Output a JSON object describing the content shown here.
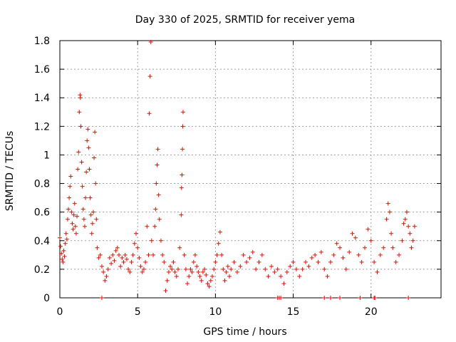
{
  "chart_data": {
    "type": "scatter",
    "title": "Day 330 of 2025, SRMTID for receiver yema",
    "xlabel": "GPS time / hours",
    "ylabel": "SRMTID / TECUs",
    "xlim": [
      0,
      24.5
    ],
    "ylim": [
      0,
      1.8
    ],
    "xticks": [
      0,
      5,
      10,
      15,
      20
    ],
    "xtick_labels": [
      "0",
      "5",
      "10",
      "15",
      "20"
    ],
    "yticks": [
      0,
      0.2,
      0.4,
      0.6,
      0.8,
      1,
      1.2,
      1.4,
      1.6,
      1.8
    ],
    "ytick_labels": [
      "0",
      "0.2",
      "0.4",
      "0.6",
      "0.8",
      "1",
      "1.2",
      "1.4",
      "1.6",
      "1.8"
    ],
    "grid": true,
    "marker": "+",
    "color": "#ff0000",
    "series": [
      {
        "name": "SRMTID",
        "points": [
          [
            0.0,
            0.42
          ],
          [
            0.05,
            0.36
          ],
          [
            0.1,
            0.31
          ],
          [
            0.15,
            0.27
          ],
          [
            0.2,
            0.25
          ],
          [
            0.25,
            0.33
          ],
          [
            0.3,
            0.29
          ],
          [
            0.35,
            0.38
          ],
          [
            0.4,
            0.45
          ],
          [
            0.45,
            0.41
          ],
          [
            0.5,
            0.55
          ],
          [
            0.55,
            0.62
          ],
          [
            0.6,
            0.7
          ],
          [
            0.65,
            0.78
          ],
          [
            0.7,
            0.85
          ],
          [
            0.75,
            0.6
          ],
          [
            0.8,
            0.52
          ],
          [
            0.85,
            0.48
          ],
          [
            0.9,
            0.58
          ],
          [
            0.95,
            0.66
          ],
          [
            1.0,
            0.5
          ],
          [
            1.05,
            0.45
          ],
          [
            1.1,
            0.57
          ],
          [
            1.15,
            0.9
          ],
          [
            1.2,
            1.02
          ],
          [
            1.25,
            1.3
          ],
          [
            1.3,
            1.42
          ],
          [
            1.32,
            1.4
          ],
          [
            1.35,
            1.2
          ],
          [
            1.4,
            0.95
          ],
          [
            1.45,
            0.78
          ],
          [
            1.5,
            0.62
          ],
          [
            1.55,
            0.55
          ],
          [
            1.6,
            0.5
          ],
          [
            1.65,
            0.7
          ],
          [
            1.7,
            0.88
          ],
          [
            1.75,
            1.1
          ],
          [
            1.8,
            1.18
          ],
          [
            1.85,
            1.05
          ],
          [
            1.9,
            0.9
          ],
          [
            1.95,
            0.7
          ],
          [
            2.0,
            0.58
          ],
          [
            2.05,
            0.45
          ],
          [
            2.1,
            0.52
          ],
          [
            2.15,
            0.6
          ],
          [
            2.2,
            0.98
          ],
          [
            2.25,
            1.16
          ],
          [
            2.3,
            0.8
          ],
          [
            2.35,
            0.55
          ],
          [
            2.4,
            0.35
          ],
          [
            2.5,
            0.28
          ],
          [
            2.6,
            0.3
          ],
          [
            2.7,
            0.22
          ],
          [
            2.8,
            0.18
          ],
          [
            2.9,
            0.12
          ],
          [
            3.0,
            0.15
          ],
          [
            3.1,
            0.2
          ],
          [
            3.2,
            0.28
          ],
          [
            3.3,
            0.24
          ],
          [
            3.4,
            0.3
          ],
          [
            3.5,
            0.26
          ],
          [
            3.6,
            0.33
          ],
          [
            3.7,
            0.35
          ],
          [
            3.8,
            0.3
          ],
          [
            3.9,
            0.22
          ],
          [
            4.0,
            0.28
          ],
          [
            4.1,
            0.25
          ],
          [
            4.2,
            0.3
          ],
          [
            4.3,
            0.27
          ],
          [
            4.4,
            0.2
          ],
          [
            4.5,
            0.18
          ],
          [
            4.6,
            0.25
          ],
          [
            4.7,
            0.3
          ],
          [
            4.8,
            0.38
          ],
          [
            4.9,
            0.45
          ],
          [
            5.0,
            0.35
          ],
          [
            5.1,
            0.28
          ],
          [
            5.2,
            0.22
          ],
          [
            5.3,
            0.18
          ],
          [
            5.4,
            0.2
          ],
          [
            5.5,
            0.25
          ],
          [
            5.6,
            0.5
          ],
          [
            5.7,
            0.3
          ],
          [
            5.75,
            1.29
          ],
          [
            5.8,
            1.55
          ],
          [
            5.85,
            1.79
          ],
          [
            5.9,
            0.4
          ],
          [
            6.0,
            0.3
          ],
          [
            6.1,
            0.5
          ],
          [
            6.15,
            0.62
          ],
          [
            6.2,
            0.8
          ],
          [
            6.25,
            0.93
          ],
          [
            6.3,
            1.04
          ],
          [
            6.35,
            0.72
          ],
          [
            6.4,
            0.55
          ],
          [
            6.5,
            0.4
          ],
          [
            6.6,
            0.3
          ],
          [
            6.7,
            0.25
          ],
          [
            6.8,
            0.05
          ],
          [
            6.9,
            0.12
          ],
          [
            7.0,
            0.18
          ],
          [
            7.1,
            0.22
          ],
          [
            7.2,
            0.2
          ],
          [
            7.3,
            0.25
          ],
          [
            7.4,
            0.18
          ],
          [
            7.5,
            0.15
          ],
          [
            7.6,
            0.2
          ],
          [
            7.7,
            0.35
          ],
          [
            7.8,
            0.58
          ],
          [
            7.82,
            0.77
          ],
          [
            7.85,
            0.86
          ],
          [
            7.88,
            1.04
          ],
          [
            7.9,
            1.2
          ],
          [
            7.92,
            1.3
          ],
          [
            8.0,
            0.3
          ],
          [
            8.1,
            0.2
          ],
          [
            8.2,
            0.1
          ],
          [
            8.3,
            0.15
          ],
          [
            8.4,
            0.2
          ],
          [
            8.5,
            0.18
          ],
          [
            8.6,
            0.25
          ],
          [
            8.7,
            0.3
          ],
          [
            8.8,
            0.22
          ],
          [
            8.9,
            0.18
          ],
          [
            9.0,
            0.15
          ],
          [
            9.1,
            0.12
          ],
          [
            9.2,
            0.18
          ],
          [
            9.3,
            0.2
          ],
          [
            9.4,
            0.16
          ],
          [
            9.5,
            0.1
          ],
          [
            9.6,
            0.08
          ],
          [
            9.7,
            0.12
          ],
          [
            9.8,
            0.15
          ],
          [
            9.9,
            0.2
          ],
          [
            10.0,
            0.25
          ],
          [
            10.1,
            0.3
          ],
          [
            10.2,
            0.38
          ],
          [
            10.3,
            0.46
          ],
          [
            10.4,
            0.3
          ],
          [
            10.5,
            0.2
          ],
          [
            10.6,
            0.12
          ],
          [
            10.7,
            0.18
          ],
          [
            10.8,
            0.22
          ],
          [
            10.9,
            0.15
          ],
          [
            11.0,
            0.2
          ],
          [
            11.2,
            0.25
          ],
          [
            11.4,
            0.18
          ],
          [
            11.6,
            0.22
          ],
          [
            11.8,
            0.3
          ],
          [
            12.0,
            0.25
          ],
          [
            12.2,
            0.28
          ],
          [
            12.4,
            0.32
          ],
          [
            12.6,
            0.2
          ],
          [
            12.8,
            0.25
          ],
          [
            13.0,
            0.3
          ],
          [
            13.2,
            0.2
          ],
          [
            13.4,
            0.15
          ],
          [
            13.6,
            0.22
          ],
          [
            13.8,
            0.18
          ],
          [
            14.0,
            0.2
          ],
          [
            14.2,
            0.15
          ],
          [
            14.4,
            0.1
          ],
          [
            14.6,
            0.18
          ],
          [
            14.8,
            0.22
          ],
          [
            15.0,
            0.25
          ],
          [
            15.2,
            0.2
          ],
          [
            15.4,
            0.15
          ],
          [
            15.6,
            0.2
          ],
          [
            15.8,
            0.25
          ],
          [
            16.0,
            0.22
          ],
          [
            16.2,
            0.28
          ],
          [
            16.4,
            0.3
          ],
          [
            16.6,
            0.25
          ],
          [
            16.8,
            0.32
          ],
          [
            17.0,
            0.2
          ],
          [
            17.2,
            0.15
          ],
          [
            17.4,
            0.25
          ],
          [
            17.6,
            0.3
          ],
          [
            17.8,
            0.38
          ],
          [
            18.0,
            0.35
          ],
          [
            18.2,
            0.28
          ],
          [
            18.4,
            0.2
          ],
          [
            18.6,
            0.32
          ],
          [
            18.8,
            0.45
          ],
          [
            19.0,
            0.42
          ],
          [
            19.2,
            0.3
          ],
          [
            19.4,
            0.25
          ],
          [
            19.6,
            0.35
          ],
          [
            19.8,
            0.48
          ],
          [
            20.0,
            0.4
          ],
          [
            20.2,
            0.25
          ],
          [
            20.4,
            0.18
          ],
          [
            20.6,
            0.3
          ],
          [
            20.8,
            0.35
          ],
          [
            21.0,
            0.55
          ],
          [
            21.1,
            0.66
          ],
          [
            21.2,
            0.6
          ],
          [
            21.3,
            0.45
          ],
          [
            21.4,
            0.35
          ],
          [
            21.6,
            0.25
          ],
          [
            21.8,
            0.3
          ],
          [
            22.0,
            0.4
          ],
          [
            22.1,
            0.52
          ],
          [
            22.2,
            0.55
          ],
          [
            22.3,
            0.6
          ],
          [
            22.4,
            0.5
          ],
          [
            22.5,
            0.45
          ],
          [
            22.6,
            0.35
          ],
          [
            22.7,
            0.4
          ],
          [
            22.8,
            0.5
          ]
        ]
      }
    ],
    "zero_points_x": [
      2.7,
      14.0,
      14.1,
      14.2,
      17.0,
      17.4,
      18.0,
      19.3,
      20.2,
      20.25,
      22.4
    ]
  }
}
